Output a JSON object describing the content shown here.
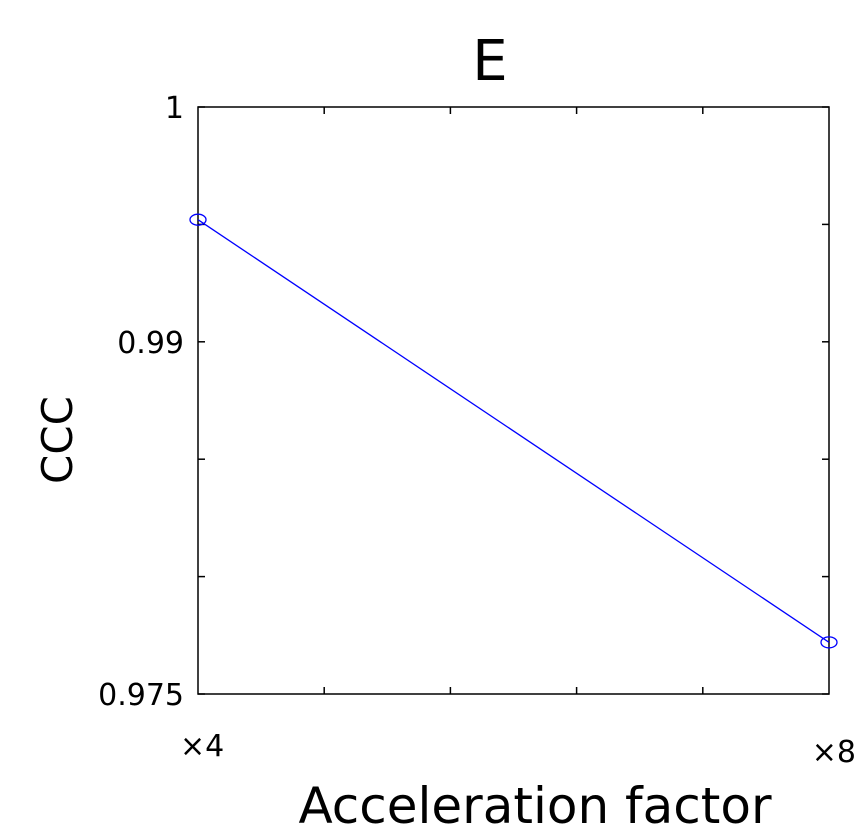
{
  "chart_data": {
    "type": "line",
    "title": "E",
    "xlabel": "Acceleration factor",
    "ylabel": "CCC",
    "categories": [
      "x4",
      "x8"
    ],
    "x_tick_labels": [
      "×4",
      "×8"
    ],
    "series": [
      {
        "values": [
          0.9952,
          0.9772
        ],
        "color": "#0000ff",
        "marker": "circle"
      }
    ],
    "ylim": [
      0.975,
      1
    ],
    "y_tick_values": [
      0.975,
      0.98,
      0.985,
      0.99,
      0.995,
      1
    ],
    "y_tick_labels": [
      "0.975",
      "",
      "",
      "0.99",
      "",
      "1"
    ],
    "x_minor_ticks": 4,
    "grid": false,
    "legend": "none"
  }
}
